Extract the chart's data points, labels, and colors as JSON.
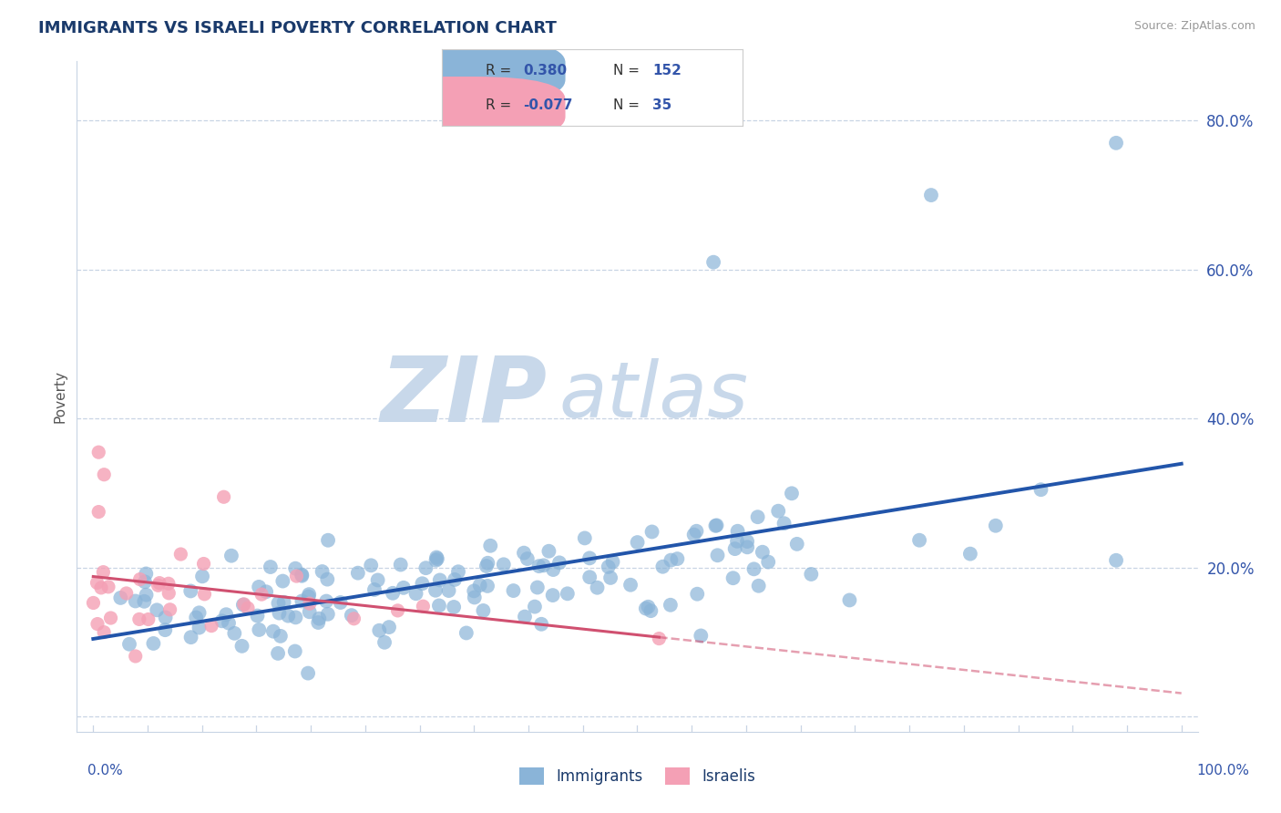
{
  "title": "IMMIGRANTS VS ISRAELI POVERTY CORRELATION CHART",
  "source": "Source: ZipAtlas.com",
  "ylabel": "Poverty",
  "blue_R": 0.38,
  "blue_N": 152,
  "pink_R": -0.077,
  "pink_N": 35,
  "blue_color": "#8ab4d8",
  "pink_color": "#f4a0b5",
  "blue_line_color": "#2255aa",
  "pink_line_color": "#d05070",
  "watermark_zip": "ZIP",
  "watermark_atlas": "atlas",
  "watermark_color_zip": "#c8d8ea",
  "watermark_color_atlas": "#c8d8ea",
  "background_color": "#ffffff",
  "grid_color": "#c8d4e4",
  "title_color": "#1a3a6b",
  "axis_label_color": "#3355aa",
  "legend_label_color": "#1a3a6b",
  "ymin": -0.02,
  "ymax": 0.88,
  "yticks": [
    0.0,
    0.2,
    0.4,
    0.6,
    0.8
  ],
  "ytick_labels": [
    "",
    "20.0%",
    "40.0%",
    "60.0%",
    "80.0%"
  ]
}
